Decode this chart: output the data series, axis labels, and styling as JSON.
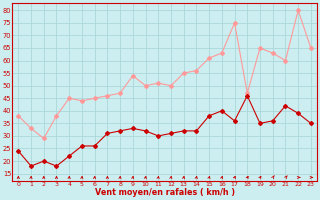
{
  "x": [
    0,
    1,
    2,
    3,
    4,
    5,
    6,
    7,
    8,
    9,
    10,
    11,
    12,
    13,
    14,
    15,
    16,
    17,
    18,
    19,
    20,
    21,
    22,
    23
  ],
  "wind_avg": [
    24,
    18,
    20,
    18,
    22,
    26,
    26,
    31,
    32,
    33,
    32,
    30,
    31,
    32,
    32,
    38,
    40,
    36,
    46,
    35,
    36,
    42,
    39,
    35
  ],
  "wind_gust": [
    38,
    33,
    29,
    38,
    45,
    44,
    45,
    46,
    47,
    54,
    50,
    51,
    50,
    55,
    56,
    61,
    63,
    75,
    47,
    65,
    63,
    60,
    80,
    65
  ],
  "bg_color": "#cceef0",
  "grid_color": "#aad8da",
  "avg_color": "#cc0000",
  "gust_color": "#ff9999",
  "xlabel": "Vent moyen/en rafales ( km/h )",
  "xlabel_color": "#cc0000",
  "yticks": [
    15,
    20,
    25,
    30,
    35,
    40,
    45,
    50,
    55,
    60,
    65,
    70,
    75,
    80
  ],
  "ylim": [
    12,
    83
  ],
  "xlim": [
    -0.5,
    23.5
  ],
  "arrow_angles": [
    90,
    85,
    90,
    90,
    85,
    85,
    85,
    85,
    85,
    80,
    80,
    80,
    80,
    80,
    80,
    75,
    75,
    70,
    65,
    65,
    60,
    55,
    0,
    0
  ]
}
